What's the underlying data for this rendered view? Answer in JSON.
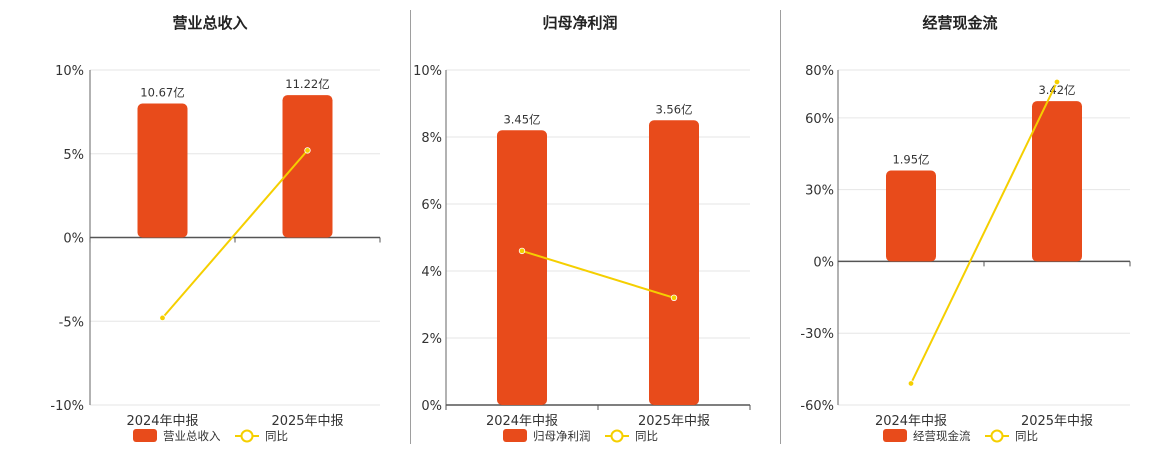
{
  "chart_data": [
    {
      "type": "bar",
      "title": "营业总收入",
      "categories": [
        "2024年中报",
        "2025年中报"
      ],
      "series": [
        {
          "name": "营业总收入",
          "type": "bar",
          "values": [
            8.0,
            8.5
          ],
          "data_labels": [
            "10.67亿",
            "11.22亿"
          ],
          "color": "#e84b1b"
        },
        {
          "name": "同比",
          "type": "line",
          "values": [
            -4.8,
            5.2
          ],
          "color": "#f5cf00"
        }
      ],
      "yticks": [
        "10%",
        "5%",
        "0%",
        "-5%",
        "-10%"
      ],
      "ylim": [
        -10,
        10
      ],
      "grid": true,
      "legend": "bottom"
    },
    {
      "type": "bar",
      "title": "归母净利润",
      "categories": [
        "2024年中报",
        "2025年中报"
      ],
      "series": [
        {
          "name": "归母净利润",
          "type": "bar",
          "values": [
            8.2,
            8.5
          ],
          "data_labels": [
            "3.45亿",
            "3.56亿"
          ],
          "color": "#e84b1b"
        },
        {
          "name": "同比",
          "type": "line",
          "values": [
            4.6,
            3.2
          ],
          "color": "#f5cf00"
        }
      ],
      "yticks": [
        "10%",
        "8%",
        "6%",
        "4%",
        "2%",
        "0%"
      ],
      "ylim": [
        0,
        10
      ],
      "grid": true,
      "legend": "bottom"
    },
    {
      "type": "bar",
      "title": "经营现金流",
      "categories": [
        "2024年中报",
        "2025年中报"
      ],
      "series": [
        {
          "name": "经营现金流",
          "type": "bar",
          "values": [
            38,
            67
          ],
          "data_labels": [
            "1.95亿",
            "3.42亿"
          ],
          "color": "#e84b1b"
        },
        {
          "name": "同比",
          "type": "line",
          "values": [
            -51,
            75
          ],
          "color": "#f5cf00"
        }
      ],
      "yticks": [
        "80%",
        "60%",
        "30%",
        "0%",
        "-30%",
        "-60%"
      ],
      "ylim": [
        -60,
        80
      ],
      "grid": true,
      "legend": "bottom"
    }
  ]
}
